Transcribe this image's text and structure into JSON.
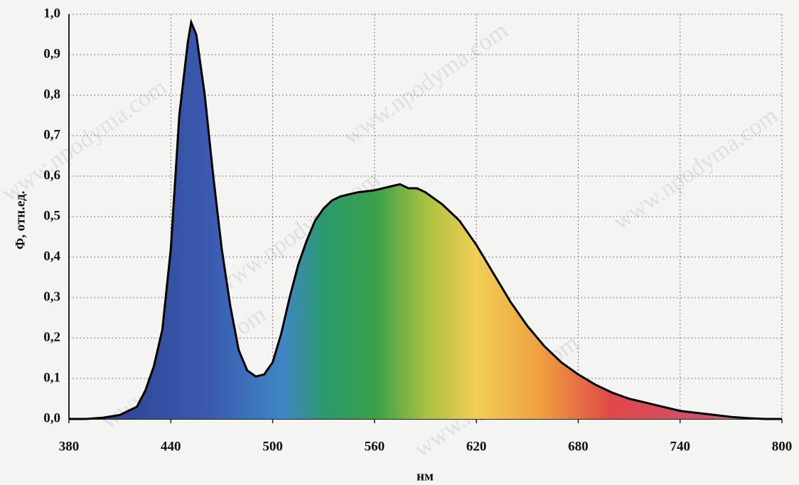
{
  "chart_data": {
    "type": "area",
    "xlabel": "нм",
    "ylabel": "Ф, отн.ед.",
    "watermark": "www.npodyma.com",
    "x": [
      380,
      390,
      400,
      410,
      420,
      425,
      430,
      435,
      440,
      445,
      450,
      452,
      455,
      460,
      465,
      470,
      475,
      480,
      485,
      490,
      495,
      500,
      505,
      510,
      515,
      520,
      525,
      530,
      535,
      540,
      550,
      560,
      570,
      575,
      580,
      585,
      590,
      600,
      610,
      620,
      630,
      640,
      650,
      660,
      670,
      680,
      690,
      700,
      710,
      720,
      730,
      740,
      750,
      760,
      770,
      780,
      790,
      800
    ],
    "series": [
      {
        "name": "Ф",
        "color": "#000000",
        "values": [
          0,
          0,
          0.003,
          0.01,
          0.03,
          0.07,
          0.13,
          0.22,
          0.42,
          0.75,
          0.93,
          0.98,
          0.95,
          0.8,
          0.6,
          0.42,
          0.28,
          0.17,
          0.12,
          0.105,
          0.11,
          0.14,
          0.21,
          0.3,
          0.38,
          0.44,
          0.49,
          0.52,
          0.54,
          0.55,
          0.56,
          0.565,
          0.575,
          0.58,
          0.57,
          0.57,
          0.56,
          0.53,
          0.49,
          0.43,
          0.36,
          0.29,
          0.23,
          0.18,
          0.14,
          0.11,
          0.085,
          0.065,
          0.05,
          0.04,
          0.03,
          0.02,
          0.015,
          0.01,
          0.005,
          0.002,
          0,
          0
        ]
      }
    ],
    "xlim": [
      380,
      800
    ],
    "xticks": [
      380,
      440,
      500,
      560,
      620,
      680,
      740,
      800
    ],
    "ylim": [
      0,
      1
    ],
    "yticks": [
      {
        "value": 0,
        "label": "0,0"
      },
      {
        "value": 0.1,
        "label": "0,1"
      },
      {
        "value": 0.2,
        "label": "0,2"
      },
      {
        "value": 0.3,
        "label": "0,3"
      },
      {
        "value": 0.4,
        "label": "0,4"
      },
      {
        "value": 0.5,
        "label": "0,5"
      },
      {
        "value": 0.6,
        "label": "0,6"
      },
      {
        "value": 0.7,
        "label": "0,7"
      },
      {
        "value": 0.8,
        "label": "0,8"
      },
      {
        "value": 0.9,
        "label": "0,9"
      },
      {
        "value": 1,
        "label": "1,0"
      }
    ],
    "grid": true
  }
}
